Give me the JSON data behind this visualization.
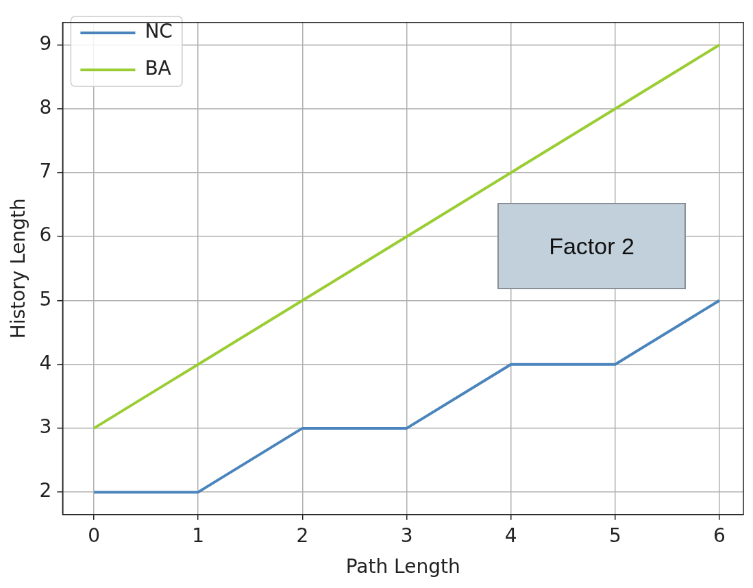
{
  "chart_data": {
    "type": "line",
    "xlabel": "Path Length",
    "ylabel": "History Length",
    "x": [
      0,
      1,
      2,
      3,
      4,
      5,
      6
    ],
    "series": [
      {
        "name": "NC",
        "color": "#4a84bc",
        "values": [
          2,
          2,
          3,
          3,
          4,
          4,
          5
        ]
      },
      {
        "name": "BA",
        "color": "#9acd32",
        "values": [
          3,
          4,
          5,
          6,
          7,
          8,
          9
        ]
      }
    ],
    "xlim": [
      -0.3,
      6.23
    ],
    "ylim": [
      1.65,
      9.35
    ],
    "xticks": [
      0,
      1,
      2,
      3,
      4,
      5,
      6
    ],
    "yticks": [
      2,
      3,
      4,
      5,
      6,
      7,
      8,
      9
    ],
    "grid": true,
    "legend": "top left",
    "marker": "none",
    "line_style": "solid",
    "annotations": [
      "Factor 2"
    ]
  }
}
